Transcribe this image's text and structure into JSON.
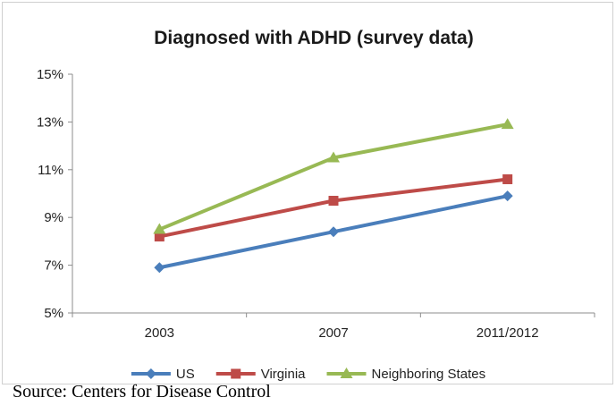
{
  "chart_data": {
    "type": "line",
    "title": "Diagnosed with ADHD (survey data)",
    "categories": [
      "2003",
      "2007",
      "2011/2012"
    ],
    "ylim": [
      5,
      15
    ],
    "yticks": [
      5,
      7,
      9,
      11,
      13,
      15
    ],
    "ytick_labels": [
      "5%",
      "7%",
      "9%",
      "11%",
      "13%",
      "15%"
    ],
    "xlabel": "",
    "ylabel": "",
    "grid": false,
    "legend_position": "bottom",
    "series": [
      {
        "name": "US",
        "values": [
          6.9,
          8.4,
          9.9
        ],
        "color": "#4a7ebb",
        "marker": "diamond"
      },
      {
        "name": "Virginia",
        "values": [
          8.2,
          9.7,
          10.6
        ],
        "color": "#be4b48",
        "marker": "square"
      },
      {
        "name": "Neighboring States",
        "values": [
          8.5,
          11.5,
          12.9
        ],
        "color": "#98b954",
        "marker": "triangle"
      }
    ]
  },
  "source_note": "Source: Centers for Disease Control"
}
